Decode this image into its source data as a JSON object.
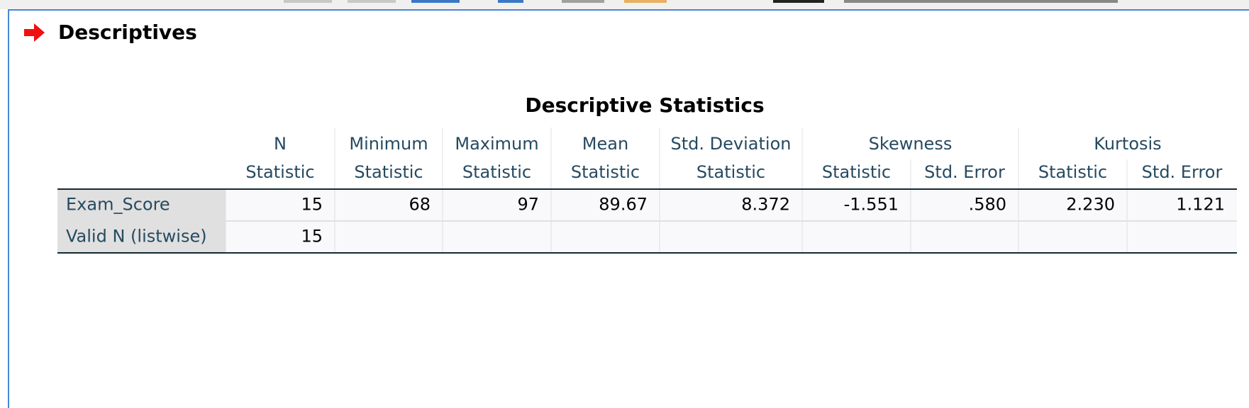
{
  "header": {
    "title": "Descriptives"
  },
  "table": {
    "title": "Descriptive Statistics",
    "header_top": [
      "N",
      "Minimum",
      "Maximum",
      "Mean",
      "Std. Deviation",
      "Skewness",
      "Kurtosis"
    ],
    "header_sub": [
      "Statistic",
      "Statistic",
      "Statistic",
      "Statistic",
      "Statistic",
      "Statistic",
      "Std. Error",
      "Statistic",
      "Std. Error"
    ],
    "rows": [
      [
        "Exam_Score",
        "15",
        "68",
        "97",
        "89.67",
        "8.372",
        "-1.551",
        ".580",
        "2.230",
        "1.121"
      ],
      [
        "Valid N (listwise)",
        "15"
      ]
    ]
  }
}
